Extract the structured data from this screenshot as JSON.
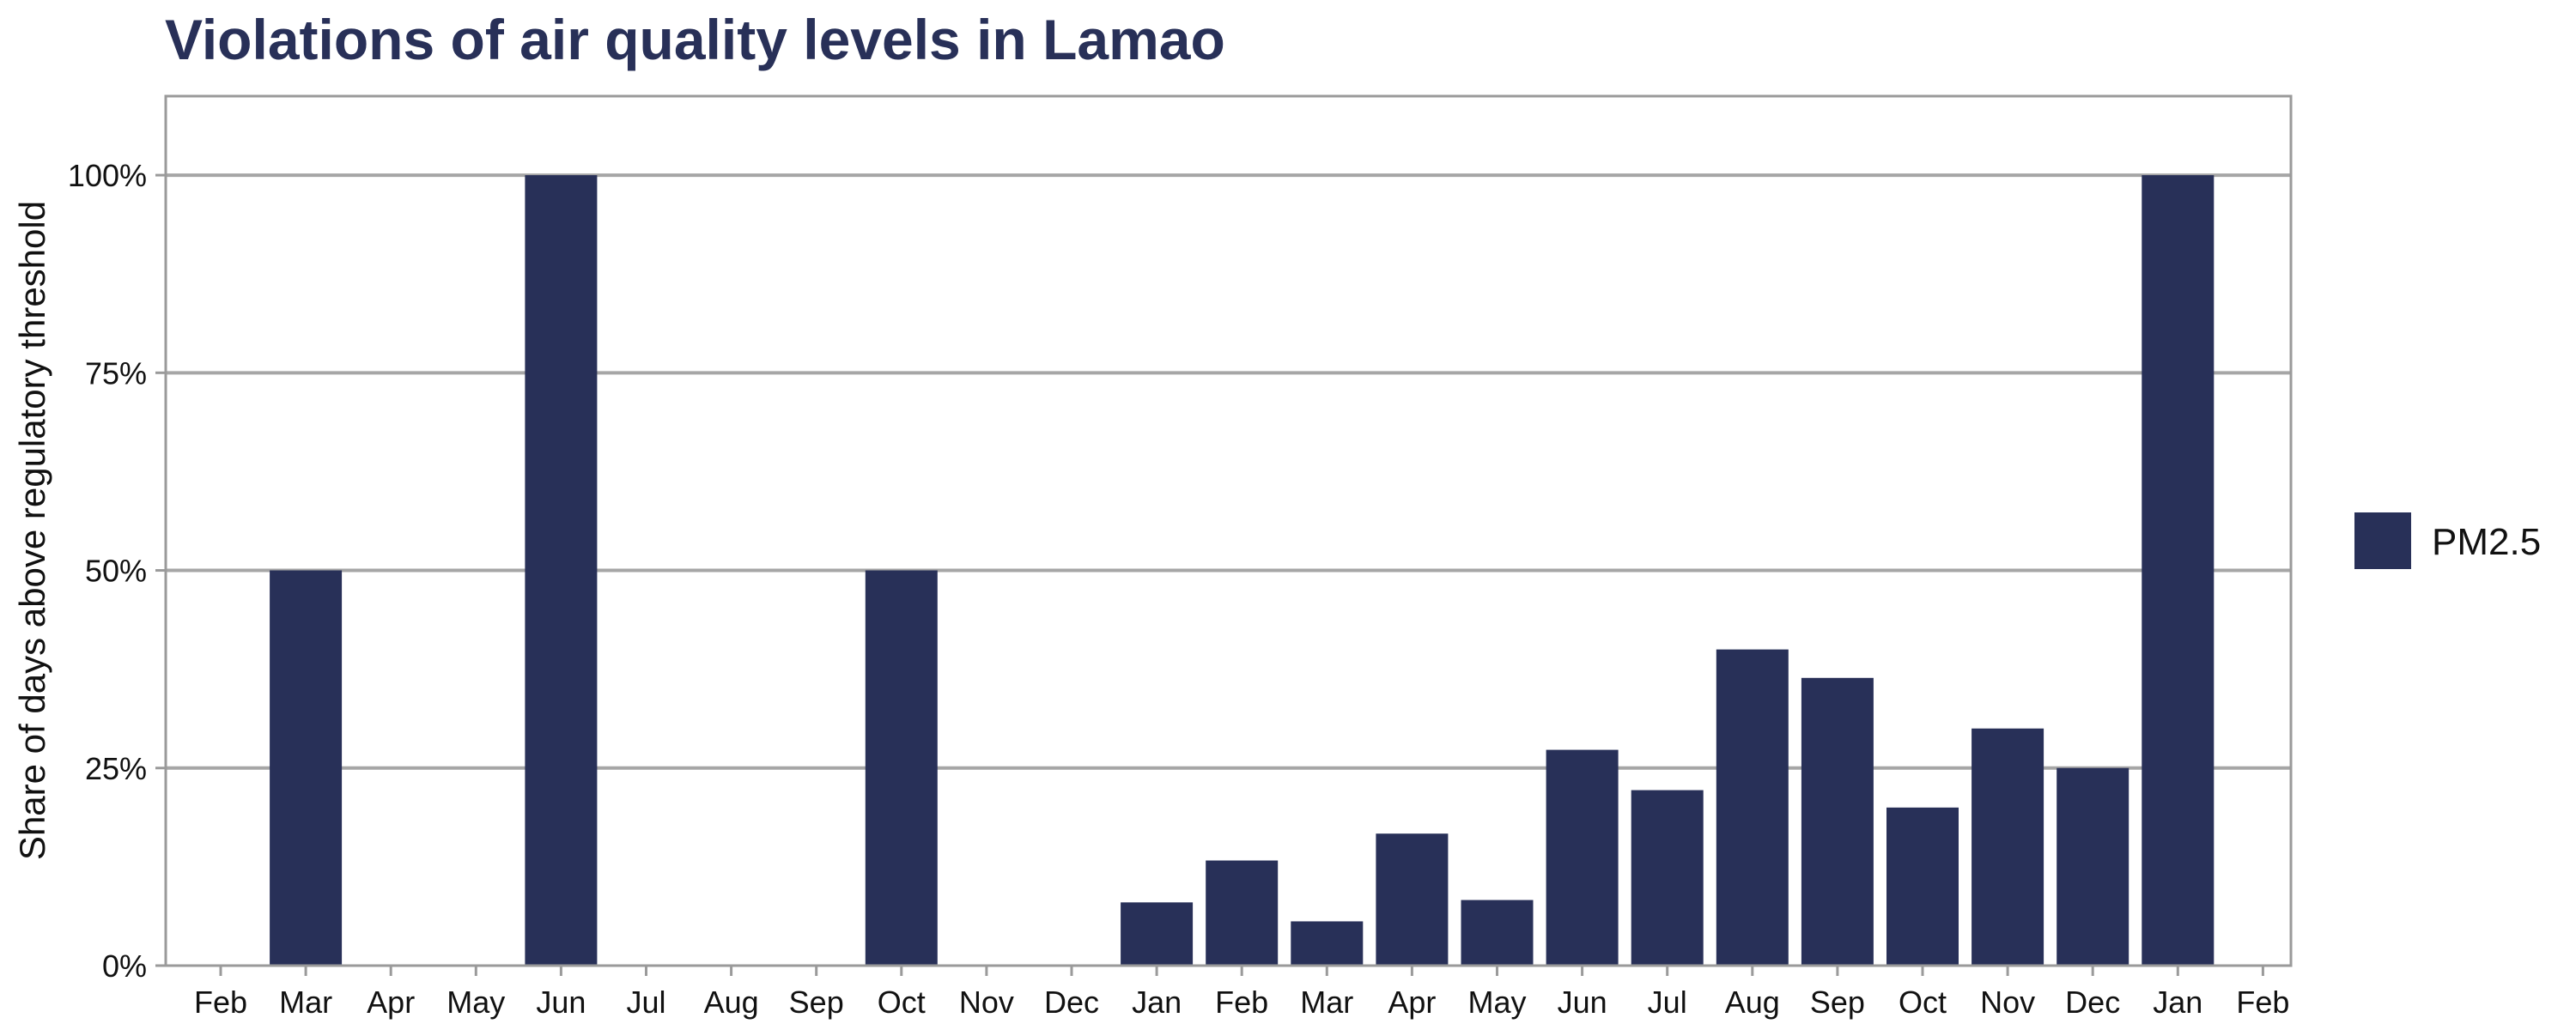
{
  "chart_data": {
    "type": "bar",
    "title": "Violations of air quality levels in Lamao",
    "ylabel": "Share of days above regulatory threshold",
    "xlabel": "",
    "ylim": [
      0,
      110
    ],
    "yticks": [
      0,
      25,
      50,
      75,
      100
    ],
    "ytick_labels": [
      "0%",
      "25%",
      "50%",
      "75%",
      "100%"
    ],
    "x_ticks": [
      "Feb",
      "Mar",
      "Apr",
      "May",
      "Jun",
      "Jul",
      "Aug",
      "Sep",
      "Oct",
      "Nov",
      "Dec",
      "Jan",
      "Feb",
      "Mar",
      "Apr",
      "May",
      "Jun",
      "Jul",
      "Aug",
      "Sep",
      "Oct",
      "Nov",
      "Dec",
      "Jan",
      "Feb"
    ],
    "categories": [
      "Feb",
      "Mar",
      "Apr",
      "May",
      "Jun",
      "Jul",
      "Aug",
      "Sep",
      "Oct",
      "Nov",
      "Dec",
      "Jan",
      "Feb",
      "Mar",
      "Apr",
      "May",
      "Jun",
      "Jul",
      "Aug",
      "Sep",
      "Oct",
      "Nov",
      "Dec",
      "Jan",
      "Feb"
    ],
    "series": [
      {
        "name": "PM2.5",
        "color": "#283058",
        "values": [
          null,
          50,
          null,
          null,
          100,
          null,
          null,
          null,
          50,
          null,
          null,
          8,
          13.3,
          5.6,
          16.7,
          8.3,
          27.3,
          22.2,
          40,
          36.4,
          20,
          30,
          25,
          100,
          null
        ]
      }
    ],
    "legend": "right",
    "grid": "horizontal"
  }
}
